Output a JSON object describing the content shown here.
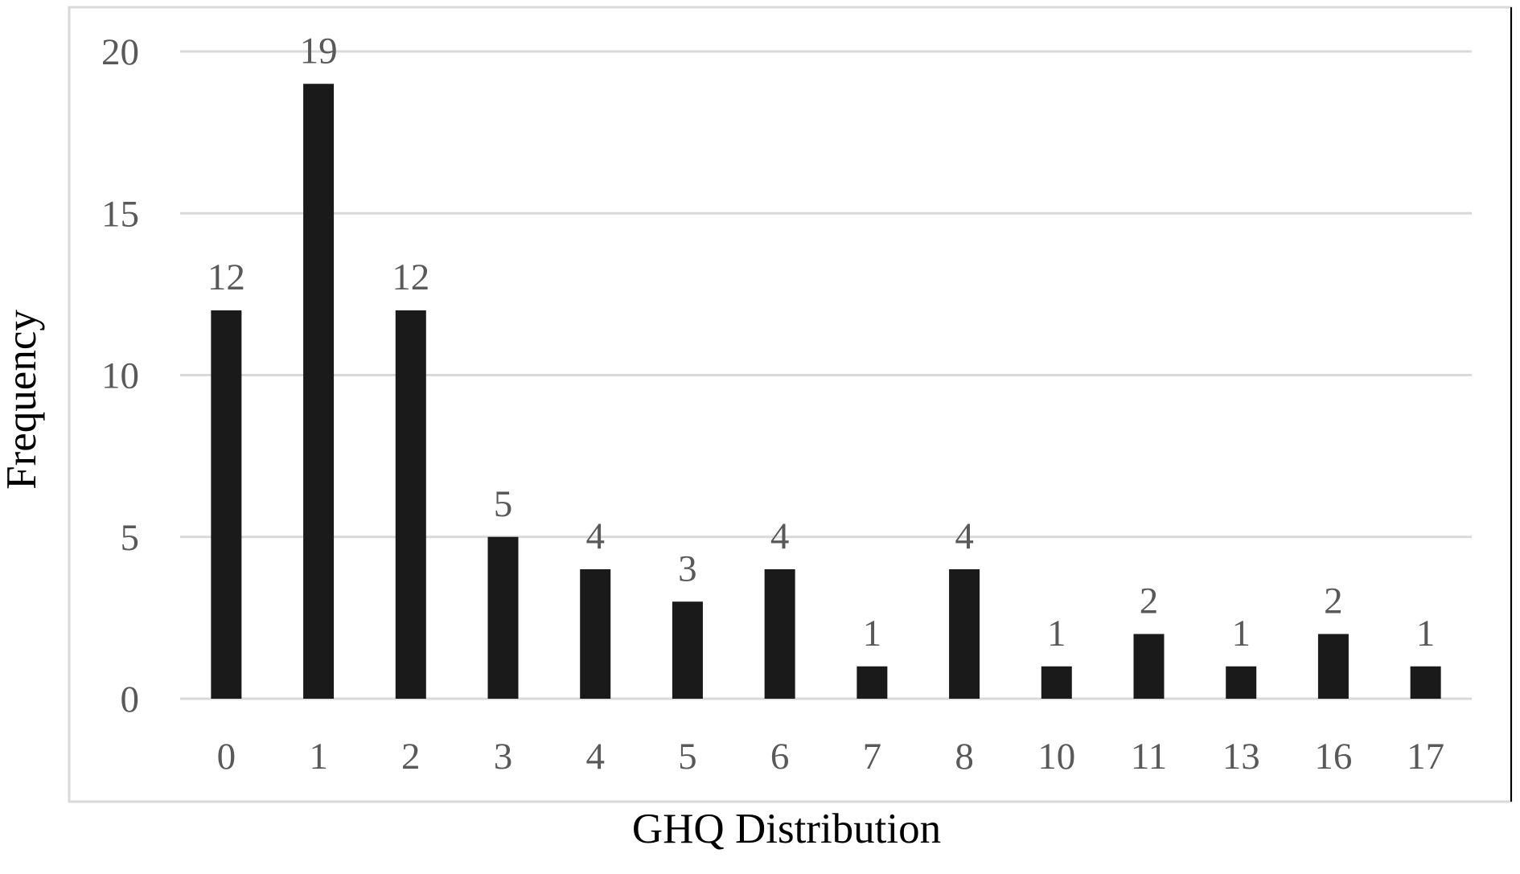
{
  "chart_data": {
    "type": "bar",
    "title": "",
    "xlabel": "GHQ Distribution",
    "ylabel": "Frequency",
    "categories": [
      "0",
      "1",
      "2",
      "3",
      "4",
      "5",
      "6",
      "7",
      "8",
      "10",
      "11",
      "13",
      "16",
      "17"
    ],
    "values": [
      12,
      19,
      12,
      5,
      4,
      3,
      4,
      1,
      4,
      1,
      2,
      1,
      2,
      1
    ],
    "data_labels": [
      "12",
      "19",
      "12",
      "5",
      "4",
      "3",
      "4",
      "1",
      "4",
      "1",
      "2",
      "1",
      "2",
      "1"
    ],
    "ylim": [
      0,
      20
    ],
    "yticks": [
      "0",
      "5",
      "10",
      "15",
      "20"
    ],
    "grid": true,
    "legend": "none",
    "colors": {
      "bar": "#1a1a1a",
      "grid": "#d9d9d9",
      "frame": "#d9d9d9",
      "tick_text": "#595959",
      "axis_title": "#000000"
    }
  }
}
